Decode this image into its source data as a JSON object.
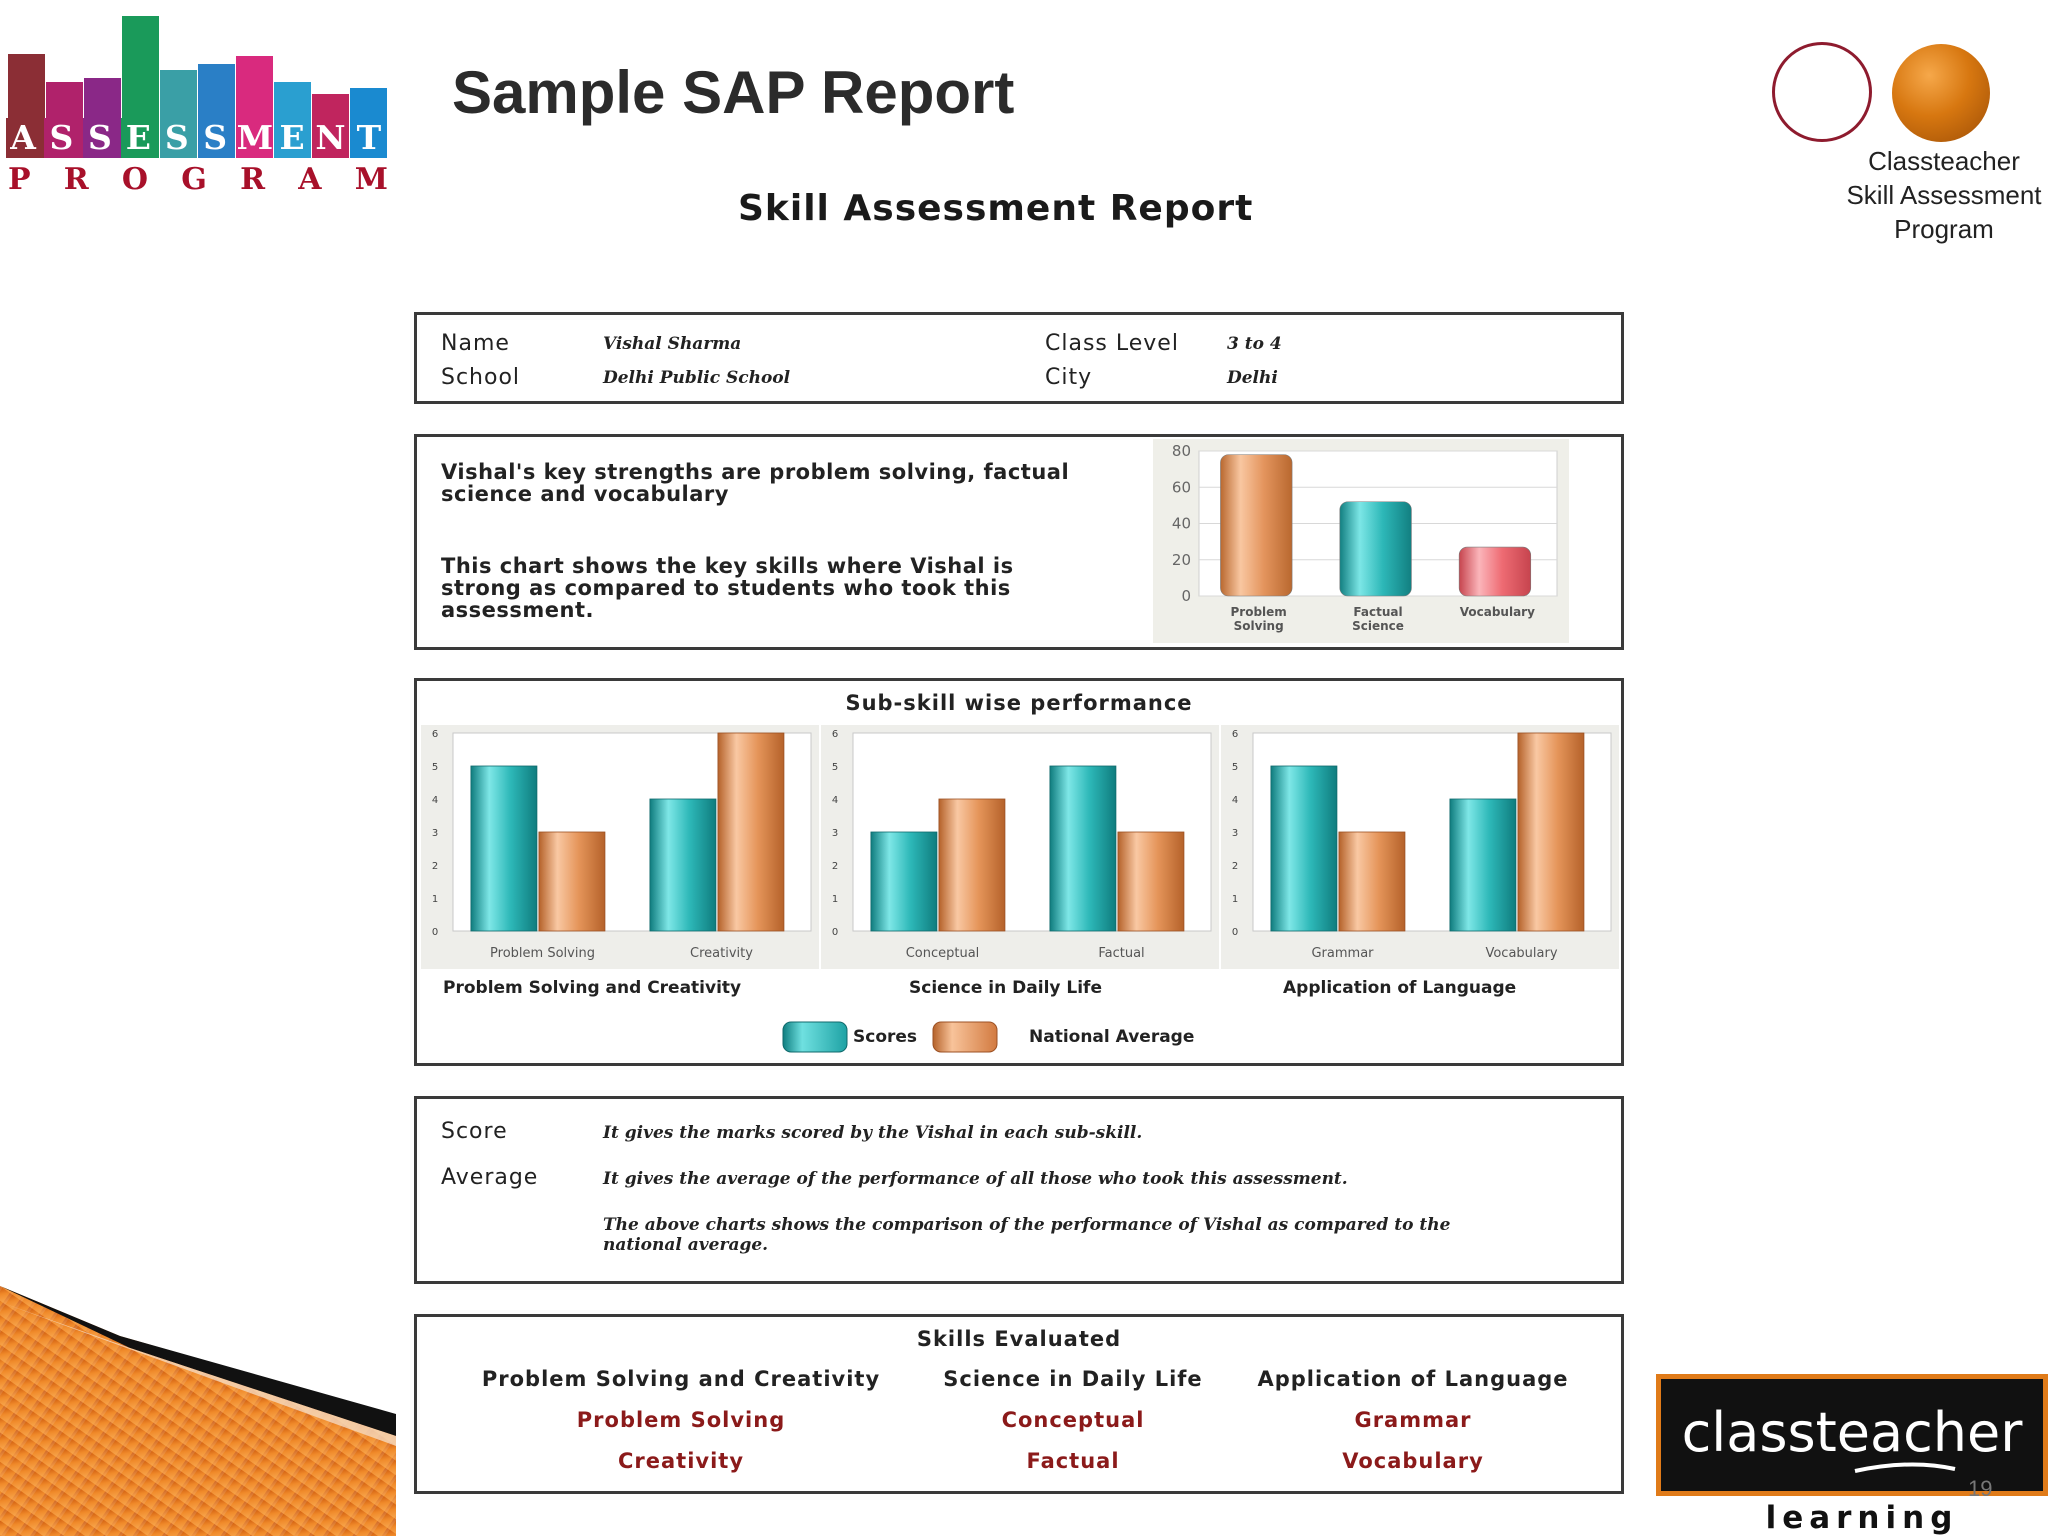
{
  "header": {
    "slide_title": "Sample SAP Report",
    "report_title": "Skill Assessment Report",
    "program_label": [
      "Classteacher",
      "Skill Assessment",
      "Program"
    ]
  },
  "logo": {
    "line1": [
      "A",
      "S",
      "S",
      "E",
      "S",
      "S",
      "M",
      "E",
      "N",
      "T"
    ],
    "line2": [
      "P",
      "R",
      "O",
      "G",
      "R",
      "A",
      "M"
    ],
    "colors": [
      "#8b2e35",
      "#b0226b",
      "#8a2887",
      "#1a9a5a",
      "#3a9fa6",
      "#2a7fc6",
      "#d92a7e",
      "#2a9fd0",
      "#c0255e",
      "#1a8ad0"
    ]
  },
  "student": {
    "name_label": "Name",
    "name_value": "Vishal Sharma",
    "school_label": "School",
    "school_value": "Delhi Public School",
    "class_label": "Class Level",
    "class_value": "3 to 4",
    "city_label": "City",
    "city_value": "Delhi"
  },
  "summary": {
    "line1": "Vishal's key strengths are problem solving, factual",
    "line2": "science and vocabulary",
    "line3": "This chart shows the key skills where Vishal is",
    "line4": "strong as compared to students who took this",
    "line5": "assessment."
  },
  "colors": {
    "score": "#2db8b8",
    "average": "#e5955a",
    "vocab": "#ee6b73",
    "brand_orange": "#e07b19",
    "skill_item": "#8b1a1a"
  },
  "subskill": {
    "title": "Sub-skill wise performance",
    "legend_scores": "Scores",
    "legend_average": "National Average"
  },
  "chart_data": [
    {
      "type": "bar",
      "categories": [
        "Problem Solving",
        "Factual Science",
        "Vocabulary"
      ],
      "values": [
        78,
        52,
        27
      ],
      "ylim": [
        0,
        80
      ],
      "yticks": [
        0,
        20,
        40,
        60,
        80
      ],
      "category_lines": [
        [
          "Problem",
          "Solving"
        ],
        [
          "Factual",
          "Science"
        ],
        [
          "Vocabulary"
        ]
      ]
    },
    {
      "type": "bar",
      "title": "Problem Solving and Creativity",
      "categories": [
        "Problem Solving",
        "Creativity"
      ],
      "series": [
        {
          "name": "Scores",
          "values": [
            5,
            4
          ]
        },
        {
          "name": "National Average",
          "values": [
            3,
            6
          ]
        }
      ],
      "ylim": [
        0,
        6
      ],
      "yticks": [
        0,
        1,
        2,
        3,
        4,
        5,
        6
      ]
    },
    {
      "type": "bar",
      "title": "Science in Daily Life",
      "categories": [
        "Conceptual",
        "Factual"
      ],
      "series": [
        {
          "name": "Scores",
          "values": [
            3,
            5
          ]
        },
        {
          "name": "National Average",
          "values": [
            4,
            3
          ]
        }
      ],
      "ylim": [
        0,
        6
      ],
      "yticks": [
        0,
        1,
        2,
        3,
        4,
        5,
        6
      ]
    },
    {
      "type": "bar",
      "title": "Application of Language",
      "categories": [
        "Grammar",
        "Vocabulary"
      ],
      "series": [
        {
          "name": "Scores",
          "values": [
            5,
            4
          ]
        },
        {
          "name": "National Average",
          "values": [
            3,
            6
          ]
        }
      ],
      "ylim": [
        0,
        6
      ],
      "yticks": [
        0,
        1,
        2,
        3,
        4,
        5,
        6
      ]
    }
  ],
  "legend": {
    "score_label": "Score",
    "score_text": "It gives the marks scored by the Vishal in each sub-skill.",
    "average_label": "Average",
    "average_text": "It gives the average of the performance of all those who took this assessment.",
    "note_line1": "The above charts shows the comparison of the performance of Vishal as compared to the",
    "note_line2": "national average."
  },
  "skills": {
    "title": "Skills Evaluated",
    "columns": [
      {
        "heading": "Problem Solving and Creativity",
        "items": [
          "Problem Solving",
          "Creativity"
        ]
      },
      {
        "heading": "Science in Daily Life",
        "items": [
          "Conceptual",
          "Factual"
        ]
      },
      {
        "heading": "Application of Language",
        "items": [
          "Grammar",
          "Vocabulary"
        ]
      }
    ]
  },
  "footer": {
    "brand_name": "classteacher",
    "brand_tagline": "learning systems",
    "page_number": "19"
  }
}
